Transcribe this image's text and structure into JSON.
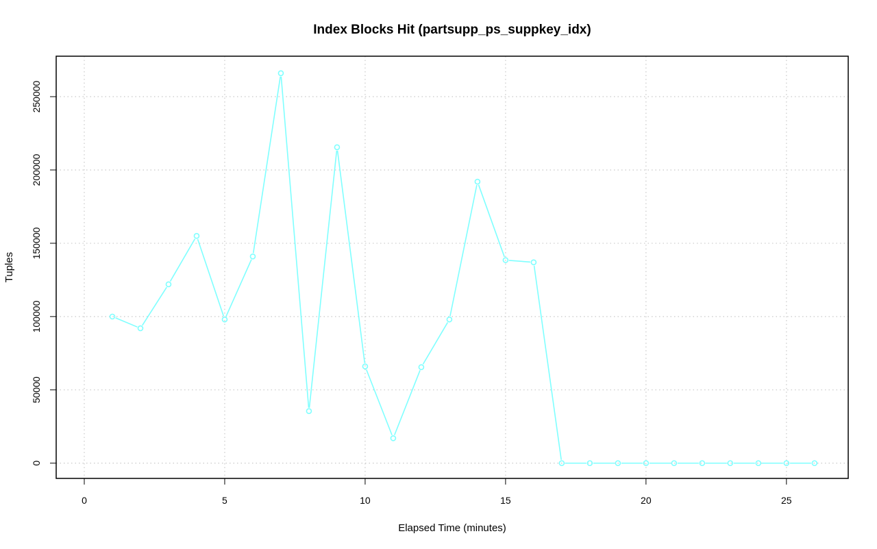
{
  "chart_data": {
    "type": "line",
    "title": "Index Blocks Hit (partsupp_ps_suppkey_idx)",
    "xlabel": "Elapsed Time (minutes)",
    "ylabel": "Tuples",
    "xlim": [
      -1,
      27.2
    ],
    "ylim": [
      -10400,
      277600
    ],
    "xticks": [
      0,
      5,
      10,
      15,
      20,
      25
    ],
    "yticks": [
      0,
      50000,
      100000,
      150000,
      200000,
      250000
    ],
    "grid": true,
    "color": "#7fffff",
    "series": [
      {
        "x": [
          1,
          2,
          3,
          4,
          5,
          6,
          7,
          8,
          9,
          10,
          11,
          12,
          13,
          14,
          15,
          16,
          17,
          18,
          19,
          20,
          21,
          22,
          23,
          24,
          25,
          26
        ],
        "values": [
          100000,
          92000,
          122000,
          155000,
          98000,
          141000,
          266000,
          35500,
          215500,
          66000,
          17000,
          65500,
          98000,
          192000,
          138500,
          137000,
          0,
          0,
          0,
          0,
          0,
          0,
          0,
          0,
          0,
          0
        ]
      }
    ]
  }
}
